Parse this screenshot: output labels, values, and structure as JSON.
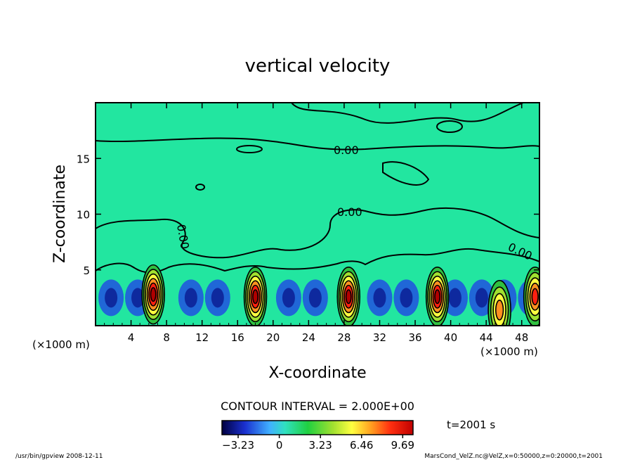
{
  "chart_data": {
    "type": "heatmap",
    "title": "vertical velocity",
    "xlabel": "X-coordinate",
    "ylabel": "Z-coordinate",
    "x_unit": "(×1000 m)",
    "y_unit": "(×1000 m)",
    "xlim": [
      0,
      50
    ],
    "ylim": [
      0,
      20
    ],
    "x_ticks": [
      4,
      8,
      12,
      16,
      20,
      24,
      28,
      32,
      36,
      40,
      44,
      48
    ],
    "y_ticks": [
      5,
      10,
      15
    ],
    "contour_interval_label": "CONTOUR INTERVAL = 2.000E+00",
    "contour_labels": [
      "0.00",
      "0.00",
      "0.00",
      "0.00"
    ],
    "updraft_cores": [
      {
        "x": 6.5,
        "z": 2.8,
        "w": 9.0
      },
      {
        "x": 18.0,
        "z": 2.6,
        "w": 9.5
      },
      {
        "x": 28.5,
        "z": 2.6,
        "w": 9.2
      },
      {
        "x": 38.5,
        "z": 2.6,
        "w": 9.6
      },
      {
        "x": 45.5,
        "z": 1.4,
        "w": 7.0
      },
      {
        "x": 49.5,
        "z": 2.6,
        "w": 7.5
      }
    ],
    "colorbar": {
      "min": -4.5,
      "max": 10.5,
      "tick_values": [
        -3.23,
        0,
        3.23,
        6.46,
        9.69
      ],
      "tick_labels": [
        "−3.23",
        "0",
        "3.23",
        "6.46",
        "9.69"
      ]
    },
    "time_label": "t=2001 s"
  },
  "footer": {
    "left": "/usr/bin/gpview  2008-12-11",
    "right": "MarsCond_VelZ.nc@VelZ,x=0:50000,z=0:20000,t=2001"
  },
  "colors": {
    "background_field": "#22e6a0",
    "contour_line": "#000000"
  }
}
